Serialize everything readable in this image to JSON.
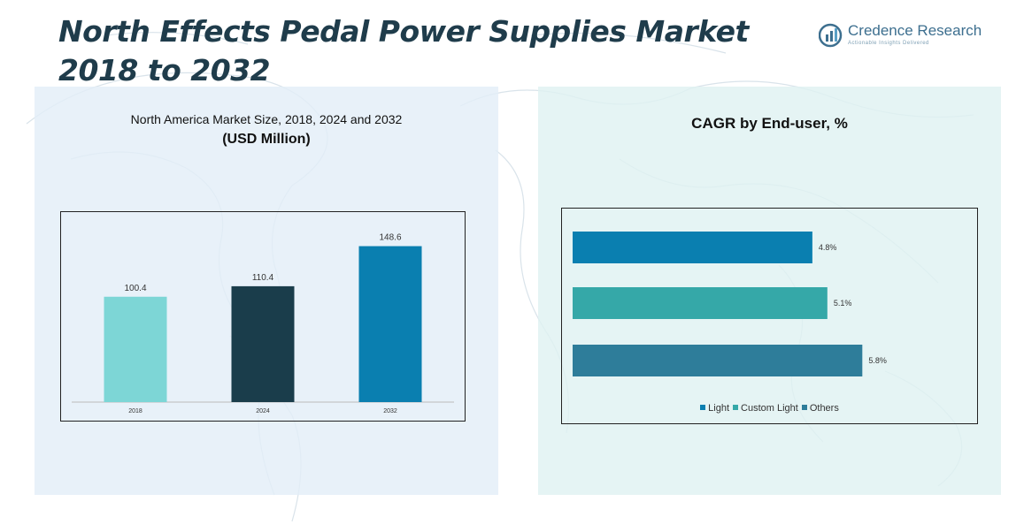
{
  "page": {
    "title": "North Effects Pedal Power Supplies Market 2018 to 2032"
  },
  "logo": {
    "name": "Credence Research",
    "tagline": "Actionable Insights Delivered"
  },
  "left_panel": {
    "subtitle_line1": "North America Market Size, 2018, 2024 and 2032",
    "subtitle_line2": "(USD Million)"
  },
  "right_panel": {
    "subtitle": "CAGR by End-user, %"
  },
  "colors": {
    "bar_2018": "#7dd6d6",
    "bar_2024": "#1a3d4b",
    "bar_2032": "#0a7fb0",
    "light": "#0a7fb0",
    "custom_light": "#35a8a8",
    "others": "#2e7d9a"
  },
  "chart_data": [
    {
      "type": "bar",
      "title": "North America Market Size, 2018, 2024 and 2032",
      "subtitle": "(USD Million)",
      "categories": [
        "2018",
        "2024",
        "2032"
      ],
      "values": [
        100.4,
        110.4,
        148.6
      ],
      "value_labels": [
        "100.4",
        "110.4",
        "148.6"
      ],
      "ylim": [
        0,
        160
      ],
      "grid": false
    },
    {
      "type": "bar",
      "orientation": "horizontal",
      "title": "CAGR by End-user, %",
      "categories": [
        "Light",
        "Custom Light",
        "Others"
      ],
      "values": [
        4.8,
        5.1,
        5.8
      ],
      "value_labels": [
        "4.8%",
        "5.1%",
        "5.8%"
      ],
      "xlim": [
        0,
        6.5
      ],
      "legend": "bottom",
      "grid": false
    }
  ]
}
